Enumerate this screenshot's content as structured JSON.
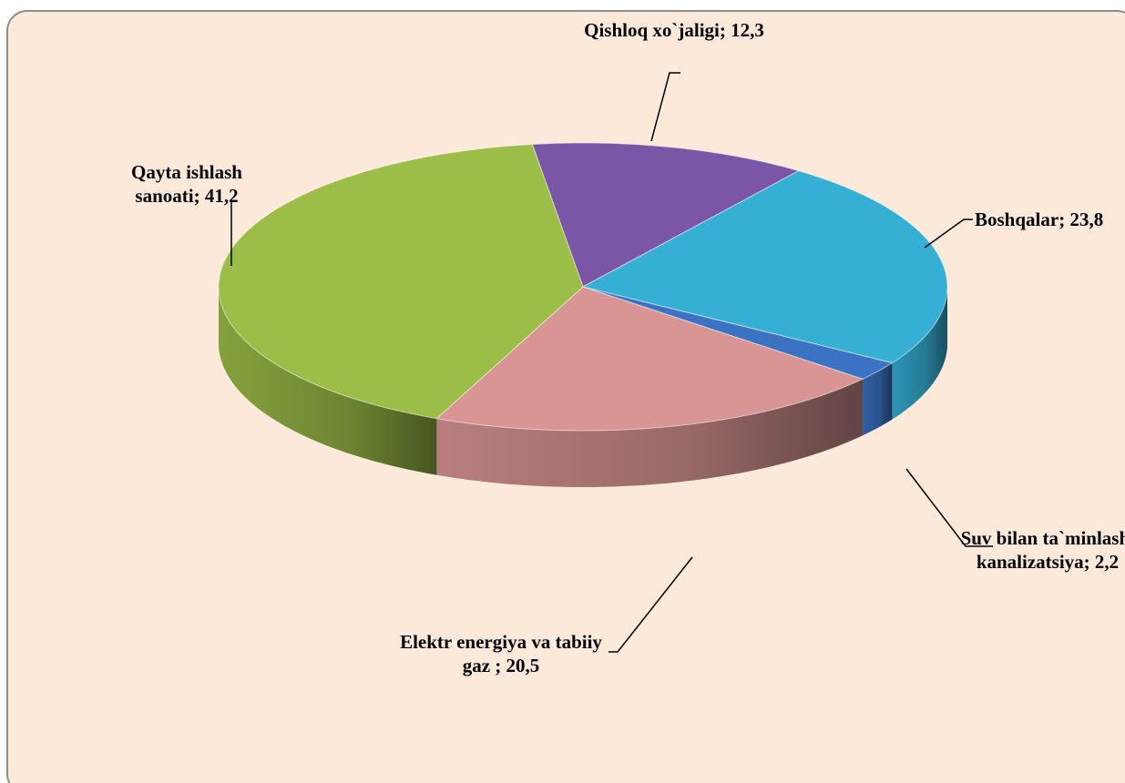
{
  "chart_data": {
    "type": "pie",
    "categories": [
      "Qishloq xo`jaligi;",
      "Boshqalar;",
      "Suv bilan ta`minlash, kanalizatsiya;",
      "Elektr energiya va tabiiy gaz ;",
      "Qayta ishlash sanoati;"
    ],
    "values": [
      12.3,
      23.8,
      2.2,
      20.5,
      41.2
    ],
    "value_labels": [
      "12,3",
      "23,8",
      "2,2",
      "20,5",
      "41,2"
    ],
    "colors": [
      "#7b55a6",
      "#36afd4",
      "#3b72c2",
      "#d99594",
      "#9cbe48"
    ]
  }
}
